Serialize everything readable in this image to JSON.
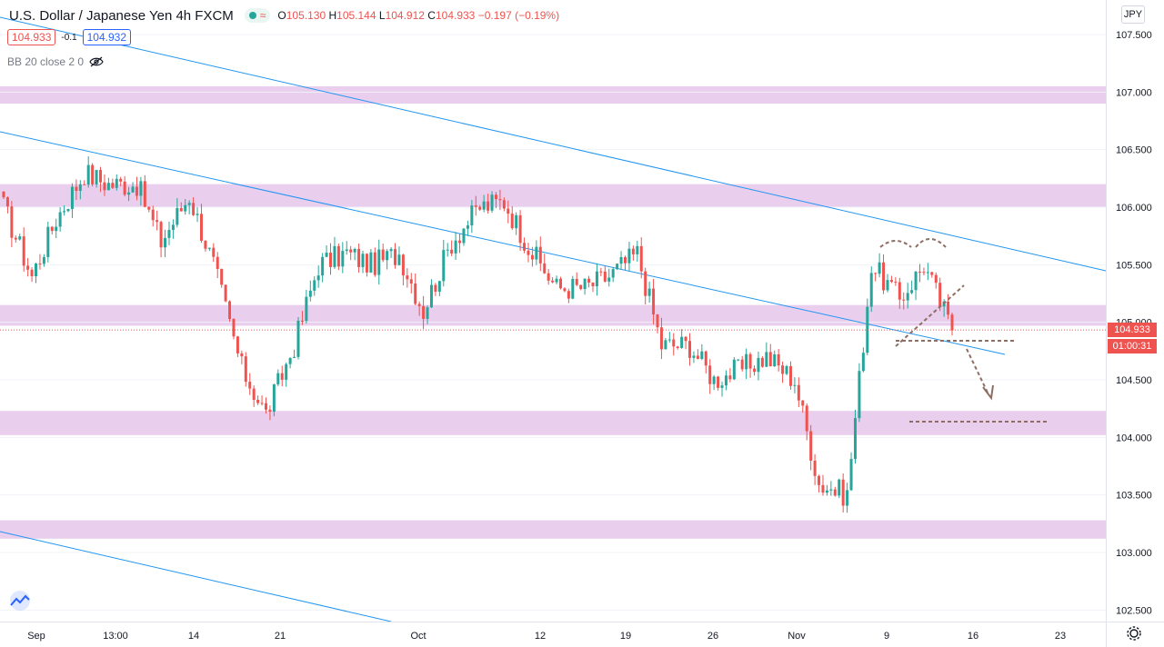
{
  "header": {
    "title": "U.S. Dollar / Japanese Yen  4h  FXCM",
    "ohlc": {
      "o_label": "O",
      "o": "105.130",
      "h_label": "H",
      "h": "105.144",
      "l_label": "L",
      "l": "104.912",
      "c_label": "C",
      "c": "104.933",
      "change": "−0.197 (−0.19%)"
    },
    "icons": [
      "market-open-dot-icon",
      "wave-icon"
    ]
  },
  "price_boxes": {
    "sell": "104.933",
    "spread": "-0.1",
    "buy": "104.932"
  },
  "indicator": {
    "label": "BB 20 close 2 0",
    "icon": "eye-crossed-icon"
  },
  "currency": "JPY",
  "last_price_label": "104.933",
  "countdown": "01:00:31",
  "colors": {
    "up": "#26a69a",
    "down": "#ef5350",
    "zone": "#e1bee7",
    "trendline": "#2196f3",
    "annotation": "#8d6e63"
  },
  "chart_data": {
    "type": "candlestick",
    "title": "U.S. Dollar / Japanese Yen 4h FXCM",
    "y_axis": {
      "ticks": [
        "107.500",
        "107.000",
        "106.500",
        "106.000",
        "105.500",
        "105.000",
        "104.500",
        "104.000",
        "103.500",
        "103.000",
        "102.500"
      ],
      "range": [
        102.4,
        107.8
      ],
      "side": "right"
    },
    "x_axis": {
      "ticks": [
        "Sep",
        "13:00",
        "14",
        "21",
        "Oct",
        "12",
        "19",
        "26",
        "Nov",
        "9",
        "16",
        "23"
      ]
    },
    "zones": [
      {
        "low": 106.9,
        "high": 107.05
      },
      {
        "low": 106.0,
        "high": 106.2
      },
      {
        "low": 104.97,
        "high": 105.15
      },
      {
        "low": 104.02,
        "high": 104.23
      },
      {
        "low": 103.12,
        "high": 103.28
      }
    ],
    "waypoints": [
      {
        "x": "Aug 31",
        "y": 106.0
      },
      {
        "x": "Sep 2",
        "y": 105.4
      },
      {
        "x": "Sep 4",
        "y": 105.9
      },
      {
        "x": "Sep 7",
        "y": 106.3
      },
      {
        "x": "Sep 9",
        "y": 106.2
      },
      {
        "x": "Sep 11",
        "y": 106.2
      },
      {
        "x": "Sep 14",
        "y": 105.7
      },
      {
        "x": "Sep 16",
        "y": 106.1
      },
      {
        "x": "Sep 18",
        "y": 105.5
      },
      {
        "x": "Sep 21",
        "y": 104.6
      },
      {
        "x": "Sep 22",
        "y": 104.2
      },
      {
        "x": "Sep 23",
        "y": 104.8
      },
      {
        "x": "Sep 25",
        "y": 105.5
      },
      {
        "x": "Sep 28",
        "y": 105.6
      },
      {
        "x": "Sep 30",
        "y": 105.5
      },
      {
        "x": "Oct 2",
        "y": 105.6
      },
      {
        "x": "Oct 5",
        "y": 105.1
      },
      {
        "x": "Oct 6",
        "y": 105.7
      },
      {
        "x": "Oct 8",
        "y": 106.0
      },
      {
        "x": "Oct 9",
        "y": 106.05
      },
      {
        "x": "Oct 12",
        "y": 105.6
      },
      {
        "x": "Oct 14",
        "y": 105.3
      },
      {
        "x": "Oct 16",
        "y": 105.3
      },
      {
        "x": "Oct 19",
        "y": 105.4
      },
      {
        "x": "Oct 21",
        "y": 105.6
      },
      {
        "x": "Oct 23",
        "y": 104.8
      },
      {
        "x": "Oct 26",
        "y": 104.8
      },
      {
        "x": "Oct 28",
        "y": 104.5
      },
      {
        "x": "Oct 30",
        "y": 104.6
      },
      {
        "x": "Nov 2",
        "y": 104.7
      },
      {
        "x": "Nov 4",
        "y": 104.5
      },
      {
        "x": "Nov 6",
        "y": 103.6
      },
      {
        "x": "Nov 9",
        "y": 103.5
      },
      {
        "x": "Nov 9 PM",
        "y": 105.5
      },
      {
        "x": "Nov 10",
        "y": 105.2
      },
      {
        "x": "Nov 11",
        "y": 105.5
      },
      {
        "x": "Nov 13",
        "y": 104.93
      }
    ]
  }
}
